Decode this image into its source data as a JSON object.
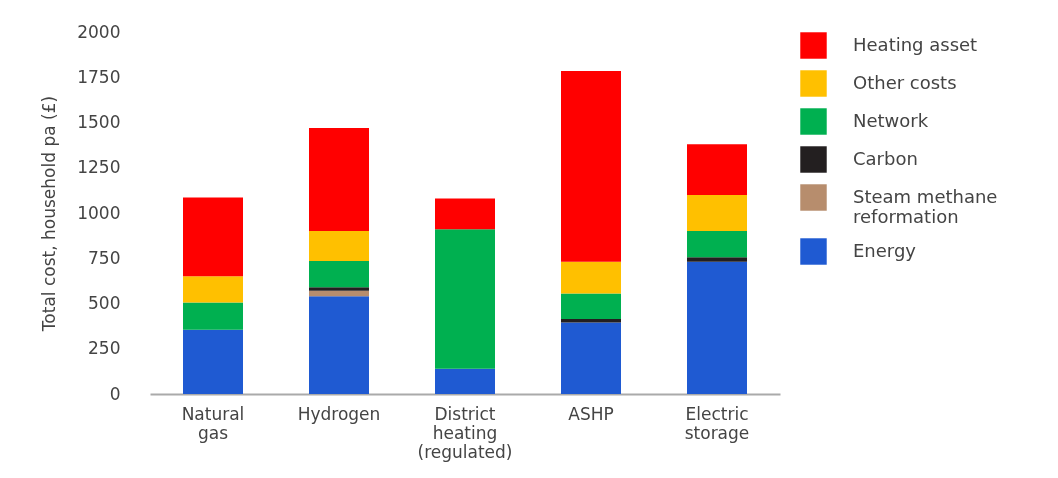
{
  "chart_data": {
    "type": "bar",
    "stacked": true,
    "ylabel": "Total cost, household pa (£)",
    "categories": [
      "Natural gas",
      "Hydrogen",
      "District heating (regulated)",
      "ASHP",
      "Electric storage"
    ],
    "series": [
      {
        "name": "Energy",
        "color": "#1f5ad2",
        "values": [
          355,
          540,
          140,
          395,
          730
        ]
      },
      {
        "name": "Steam methane reformation",
        "color": "#b78d6d",
        "values": [
          null,
          30,
          null,
          null,
          null
        ]
      },
      {
        "name": "Carbon",
        "color": "#231f20",
        "values": [
          null,
          20,
          null,
          20,
          25
        ]
      },
      {
        "name": "Network",
        "color": "#00b050",
        "values": [
          150,
          145,
          770,
          140,
          145
        ]
      },
      {
        "name": "Other costs",
        "color": "#ffc000",
        "values": [
          145,
          165,
          null,
          175,
          200
        ]
      },
      {
        "name": "Heating asset",
        "color": "#ff0000",
        "values": [
          435,
          570,
          170,
          1055,
          280
        ]
      }
    ],
    "ylim": [
      0,
      2000
    ],
    "yticks": [
      0,
      250,
      500,
      750,
      1000,
      1250,
      1500,
      1750,
      2000
    ],
    "grid": false,
    "legend": "right"
  }
}
